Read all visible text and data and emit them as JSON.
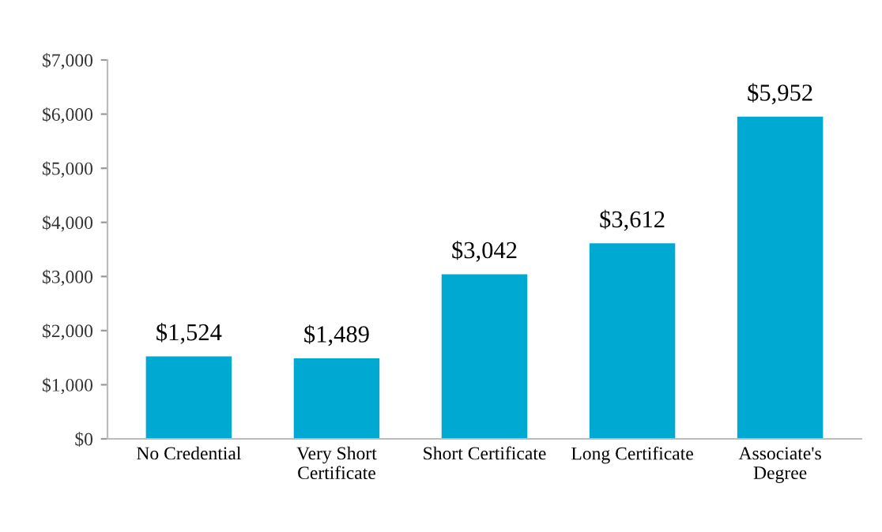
{
  "chart_data": {
    "type": "bar",
    "categories": [
      "No Credential",
      "Very Short\nCertificate",
      "Short Certificate",
      "Long Certificate",
      "Associate's\nDegree"
    ],
    "values": [
      1524,
      1489,
      3042,
      3612,
      5952
    ],
    "value_labels": [
      "$1,524",
      "$1,489",
      "$3,042",
      "$3,612",
      "$5,952"
    ],
    "color": "#00a9d1",
    "ylim": [
      0,
      7000
    ],
    "yticks": [
      {
        "value": 0,
        "label": "$0"
      },
      {
        "value": 1000,
        "label": "$1,000"
      },
      {
        "value": 2000,
        "label": "$2,000"
      },
      {
        "value": 3000,
        "label": "$3,000"
      },
      {
        "value": 4000,
        "label": "$4,000"
      },
      {
        "value": 5000,
        "label": "$5,000"
      },
      {
        "value": 6000,
        "label": "$6,000"
      },
      {
        "value": 7000,
        "label": "$7,000"
      }
    ],
    "grid": false,
    "legend": false
  }
}
